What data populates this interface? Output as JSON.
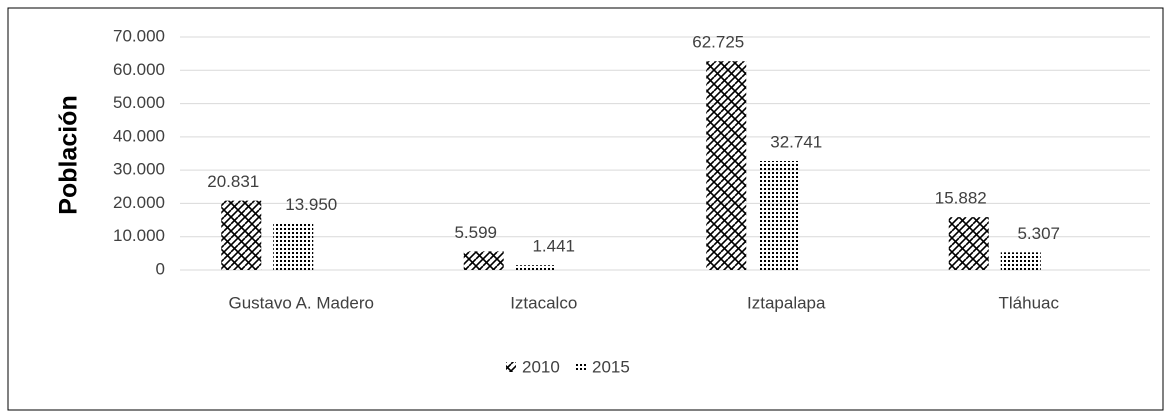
{
  "chart_data": {
    "type": "bar",
    "y_label": "Población",
    "categories": [
      "Gustavo A. Madero",
      "Iztacalco",
      "Iztapalapa",
      "Tláhuac"
    ],
    "series": [
      {
        "name": "2010",
        "color": "#000000",
        "values": [
          20831,
          5599,
          62725,
          15882
        ],
        "value_labels": [
          "20.831",
          "5.599",
          "62.725",
          "15.882"
        ]
      },
      {
        "name": "2015",
        "color": "#000000",
        "values": [
          13950,
          1441,
          32741,
          5307
        ],
        "value_labels": [
          "13.950",
          "1.441",
          "32.741",
          "5.307"
        ]
      }
    ],
    "ylim": [
      0,
      70000
    ],
    "yticks": [
      0,
      {
        "value": 10000,
        "label": "10.000"
      },
      {
        "value": 20000,
        "label": "20.000"
      },
      {
        "value": 30000,
        "label": "30.000"
      },
      {
        "value": 40000,
        "label": "40.000"
      },
      {
        "value": 50000,
        "label": "50.000"
      },
      {
        "value": 60000,
        "label": "60.000"
      },
      {
        "value": 70000,
        "label": "70.000"
      }
    ],
    "grid": true,
    "legend": "bottom"
  }
}
